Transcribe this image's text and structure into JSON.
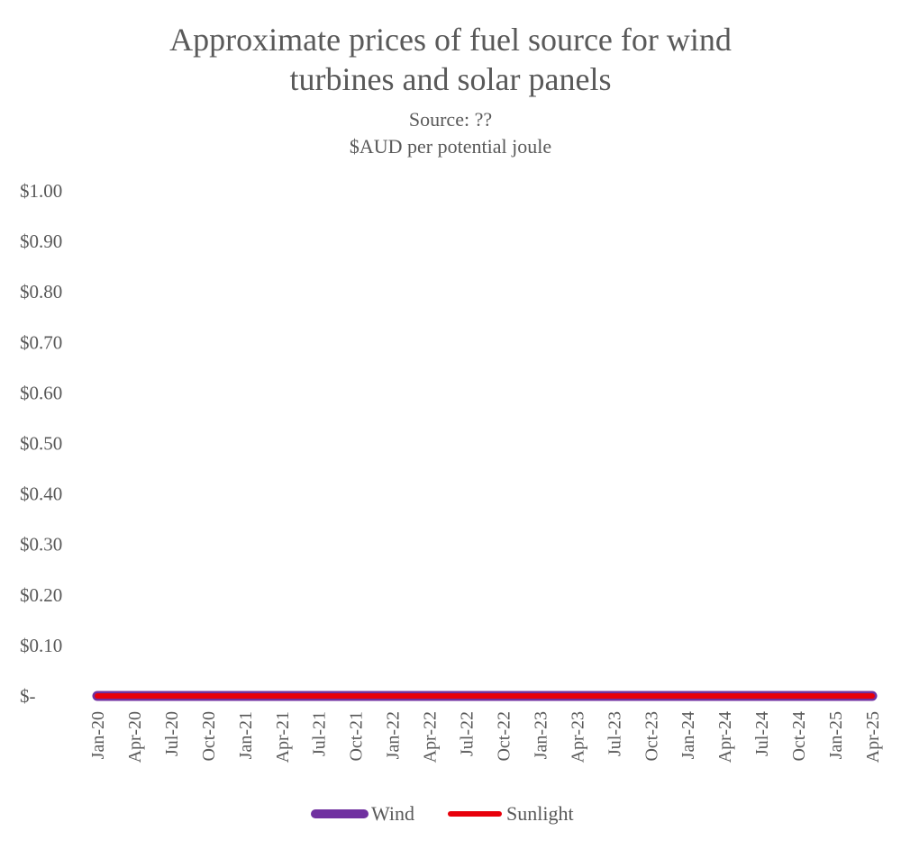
{
  "chart_data": {
    "type": "line",
    "title_lines": [
      "Approximate prices of fuel source for wind",
      "turbines and solar panels"
    ],
    "subtitle_lines": [
      "Source: ??",
      "$AUD per potential joule"
    ],
    "xlabel": "",
    "ylabel": "",
    "ylim": [
      0,
      1
    ],
    "y_ticks": [
      {
        "value": 1.0,
        "label": "$1.00"
      },
      {
        "value": 0.9,
        "label": "$0.90"
      },
      {
        "value": 0.8,
        "label": "$0.80"
      },
      {
        "value": 0.7,
        "label": "$0.70"
      },
      {
        "value": 0.6,
        "label": "$0.60"
      },
      {
        "value": 0.5,
        "label": "$0.50"
      },
      {
        "value": 0.4,
        "label": "$0.40"
      },
      {
        "value": 0.3,
        "label": "$0.30"
      },
      {
        "value": 0.2,
        "label": "$0.20"
      },
      {
        "value": 0.1,
        "label": "$0.10"
      },
      {
        "value": 0.0,
        "label": "$-"
      }
    ],
    "categories": [
      "Jan-20",
      "Apr-20",
      "Jul-20",
      "Oct-20",
      "Jan-21",
      "Apr-21",
      "Jul-21",
      "Oct-21",
      "Jan-22",
      "Apr-22",
      "Jul-22",
      "Oct-22",
      "Jan-23",
      "Apr-23",
      "Jul-23",
      "Oct-23",
      "Jan-24",
      "Apr-24",
      "Jul-24",
      "Oct-24",
      "Jan-25",
      "Apr-25"
    ],
    "series": [
      {
        "name": "Wind",
        "color": "#7030A0",
        "values": [
          0,
          0,
          0,
          0,
          0,
          0,
          0,
          0,
          0,
          0,
          0,
          0,
          0,
          0,
          0,
          0,
          0,
          0,
          0,
          0,
          0,
          0
        ]
      },
      {
        "name": "Sunlight",
        "color": "#E8000B",
        "values": [
          0,
          0,
          0,
          0,
          0,
          0,
          0,
          0,
          0,
          0,
          0,
          0,
          0,
          0,
          0,
          0,
          0,
          0,
          0,
          0,
          0,
          0
        ]
      }
    ],
    "grid": false,
    "legend_position": "bottom"
  }
}
